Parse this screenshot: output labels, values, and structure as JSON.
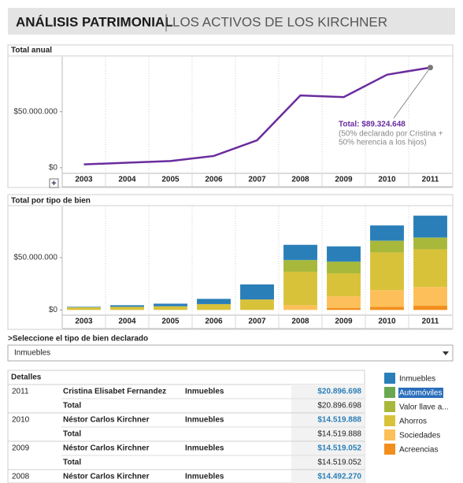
{
  "header": {
    "title": "ANÁLISIS PATRIMONIAL",
    "subtitle": "LOS ACTIVOS DE LOS KIRCHNER"
  },
  "chart_data": [
    {
      "type": "line",
      "title": "Total anual",
      "categories": [
        "2003",
        "2004",
        "2005",
        "2006",
        "2007",
        "2008",
        "2009",
        "2010",
        "2011"
      ],
      "values": [
        3000000,
        4500000,
        6000000,
        10500000,
        24500000,
        64500000,
        63000000,
        83000000,
        89324648
      ],
      "value_labels": [
        null,
        null,
        null,
        null,
        null,
        null,
        null,
        null,
        "Total: $89.324.648"
      ],
      "annotation": [
        "(50% declarado por Cristina +",
        "50% herencia a los hijos)"
      ],
      "color": "#6a2c9e",
      "ylim": [
        -5000000,
        99000000
      ],
      "yticks": [
        {
          "value": 0,
          "label": "$0"
        },
        {
          "value": 50000000,
          "label": "$50.000.000"
        }
      ]
    },
    {
      "type": "bar",
      "stacked": true,
      "title": "Total por tipo de bien",
      "categories": [
        "2003",
        "2004",
        "2005",
        "2006",
        "2007",
        "2008",
        "2009",
        "2010",
        "2011"
      ],
      "series": [
        {
          "name": "Acreencias",
          "color": "#f28e1c",
          "values": [
            0,
            0,
            0,
            0,
            0,
            0,
            2000000,
            3000000,
            4000000
          ]
        },
        {
          "name": "Sociedades",
          "color": "#fdbf5a",
          "values": [
            0,
            0,
            0,
            0,
            0,
            4500000,
            11000000,
            16000000,
            18000000
          ]
        },
        {
          "name": "Ahorros",
          "color": "#d8c23a",
          "values": [
            2500000,
            3000000,
            3500000,
            5600000,
            10000000,
            32000000,
            22000000,
            36000000,
            36000000
          ]
        },
        {
          "name": "Valor llave a...",
          "color": "#a8b83a",
          "values": [
            0,
            0,
            0,
            0,
            0,
            11000000,
            11000000,
            11000000,
            11000000
          ]
        },
        {
          "name": "Automóviles",
          "color": "#6aa84f",
          "values": [
            0,
            0,
            0,
            0,
            0,
            300000,
            300000,
            300000,
            300000
          ]
        },
        {
          "name": "Inmuebles",
          "color": "#2a7fb8",
          "values": [
            500000,
            1500000,
            2500000,
            5000000,
            14400000,
            14492270,
            14519052,
            14519888,
            20896698
          ]
        }
      ],
      "ylim": [
        -5000000,
        99000000
      ],
      "yticks": [
        {
          "value": 0,
          "label": "$0"
        },
        {
          "value": 50000000,
          "label": "$50.000.000"
        }
      ]
    }
  ],
  "filter": {
    "label": ">Seleccione el tipo de bien declarado",
    "value": "Inmuebles"
  },
  "details": {
    "title": "Detalles",
    "groups": [
      {
        "year": "2011",
        "name": "Cristina Elisabet Fernandez",
        "type": "Inmuebles",
        "value": "$20.896.698",
        "total_label": "Total",
        "total": "$20.896.698"
      },
      {
        "year": "2010",
        "name": "Néstor Carlos Kirchner",
        "type": "Inmuebles",
        "value": "$14.519.888",
        "total_label": "Total",
        "total": "$14.519.888"
      },
      {
        "year": "2009",
        "name": "Néstor Carlos Kirchner",
        "type": "Inmuebles",
        "value": "$14.519.052",
        "total_label": "Total",
        "total": "$14.519.052"
      },
      {
        "year": "2008",
        "name": "Néstor Carlos Kirchner",
        "type": "Inmuebles",
        "value": "$14.492.270"
      }
    ]
  }
}
